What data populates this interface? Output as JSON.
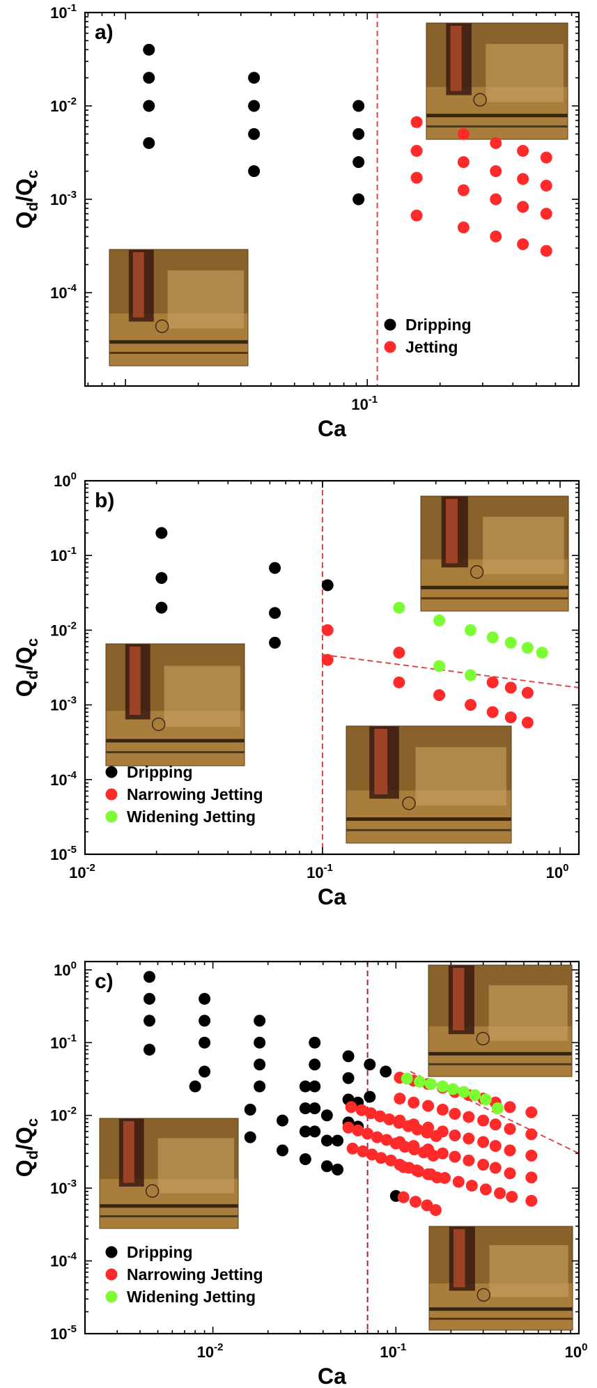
{
  "colors": {
    "dripping": "#000000",
    "narrowing_jetting": "#ff2a2a",
    "widening_jetting": "#7cfc32",
    "divider": "#e0454f",
    "divider_dark": "#b02030",
    "photo_bg": "#a97d3c"
  },
  "chart_data": [
    {
      "type": "scatter",
      "panel_label": "a)",
      "xlabel": "Ca",
      "ylabel_main": "Q",
      "ylabel_sub1": "d",
      "ylabel_div": "/Q",
      "ylabel_sub2": "c",
      "x_scale": "log",
      "y_scale": "log",
      "xlim": [
        0.0068,
        0.75
      ],
      "ylim": [
        1e-05,
        0.1
      ],
      "x_ticks": [
        {
          "value": 0.1,
          "base": "10",
          "exp": "-1"
        }
      ],
      "y_ticks": [
        {
          "value": 0.1,
          "base": "10",
          "exp": "-1"
        },
        {
          "value": 0.01,
          "base": "10",
          "exp": "-2"
        },
        {
          "value": 0.001,
          "base": "10",
          "exp": "-3"
        },
        {
          "value": 0.0001,
          "base": "10",
          "exp": "-4"
        }
      ],
      "legend_position": "bottom-right",
      "series": [
        {
          "name": "Dripping",
          "color_key": "dripping",
          "points": [
            [
              0.0125,
              0.04
            ],
            [
              0.0125,
              0.02
            ],
            [
              0.0125,
              0.01
            ],
            [
              0.0125,
              0.004
            ],
            [
              0.034,
              0.02
            ],
            [
              0.034,
              0.01
            ],
            [
              0.034,
              0.005
            ],
            [
              0.034,
              0.002
            ],
            [
              0.092,
              0.01
            ],
            [
              0.092,
              0.005
            ],
            [
              0.092,
              0.0025
            ],
            [
              0.092,
              0.001
            ]
          ]
        },
        {
          "name": "Jetting",
          "color_key": "narrowing_jetting",
          "points": [
            [
              0.16,
              0.0067
            ],
            [
              0.16,
              0.0033
            ],
            [
              0.16,
              0.0017
            ],
            [
              0.16,
              0.00067
            ],
            [
              0.25,
              0.005
            ],
            [
              0.25,
              0.0025
            ],
            [
              0.25,
              0.00125
            ],
            [
              0.25,
              0.0005
            ],
            [
              0.34,
              0.004
            ],
            [
              0.34,
              0.002
            ],
            [
              0.34,
              0.001
            ],
            [
              0.34,
              0.0004
            ],
            [
              0.44,
              0.0033
            ],
            [
              0.44,
              0.00165
            ],
            [
              0.44,
              0.00083
            ],
            [
              0.44,
              0.00033
            ],
            [
              0.55,
              0.0028
            ],
            [
              0.55,
              0.0014
            ],
            [
              0.55,
              0.0007
            ],
            [
              0.55,
              0.00028
            ]
          ]
        }
      ],
      "lines": [
        {
          "style": "vertical",
          "x": 0.11,
          "color_key": "divider"
        }
      ],
      "insets": [
        "photo-upper-right",
        "photo-lower-left"
      ]
    },
    {
      "type": "scatter",
      "panel_label": "b)",
      "xlabel": "Ca",
      "ylabel_main": "Q",
      "ylabel_sub1": "d",
      "ylabel_div": "/Q",
      "ylabel_sub2": "c",
      "x_scale": "log",
      "y_scale": "log",
      "xlim": [
        0.01,
        1.2
      ],
      "ylim": [
        1e-05,
        1
      ],
      "x_ticks": [
        {
          "value": 0.01,
          "base": "10",
          "exp": "-2"
        },
        {
          "value": 0.1,
          "base": "10",
          "exp": "-1"
        },
        {
          "value": 1,
          "base": "10",
          "exp": "0"
        }
      ],
      "y_ticks": [
        {
          "value": 1,
          "base": "10",
          "exp": "0"
        },
        {
          "value": 0.1,
          "base": "10",
          "exp": "-1"
        },
        {
          "value": 0.01,
          "base": "10",
          "exp": "-2"
        },
        {
          "value": 0.001,
          "base": "10",
          "exp": "-3"
        },
        {
          "value": 0.0001,
          "base": "10",
          "exp": "-4"
        },
        {
          "value": 1e-05,
          "base": "10",
          "exp": "-5"
        }
      ],
      "legend_position": "bottom-left",
      "series": [
        {
          "name": "Dripping",
          "color_key": "dripping",
          "points": [
            [
              0.021,
              0.2
            ],
            [
              0.021,
              0.05
            ],
            [
              0.021,
              0.02
            ],
            [
              0.063,
              0.068
            ],
            [
              0.063,
              0.017
            ],
            [
              0.063,
              0.0068
            ],
            [
              0.105,
              0.04
            ]
          ]
        },
        {
          "name": "Narrowing Jetting",
          "color_key": "narrowing_jetting",
          "points": [
            [
              0.105,
              0.01
            ],
            [
              0.105,
              0.004
            ],
            [
              0.21,
              0.005
            ],
            [
              0.21,
              0.002
            ],
            [
              0.31,
              0.00135
            ],
            [
              0.42,
              0.001
            ],
            [
              0.52,
              0.002
            ],
            [
              0.52,
              0.0008
            ],
            [
              0.62,
              0.0017
            ],
            [
              0.62,
              0.00068
            ],
            [
              0.73,
              0.00145
            ],
            [
              0.73,
              0.00058
            ]
          ]
        },
        {
          "name": "Widening Jetting",
          "color_key": "widening_jetting",
          "points": [
            [
              0.21,
              0.02
            ],
            [
              0.31,
              0.0135
            ],
            [
              0.31,
              0.0033
            ],
            [
              0.42,
              0.01
            ],
            [
              0.42,
              0.0025
            ],
            [
              0.52,
              0.008
            ],
            [
              0.62,
              0.0068
            ],
            [
              0.73,
              0.0058
            ],
            [
              0.84,
              0.005
            ]
          ]
        }
      ],
      "lines": [
        {
          "style": "vertical",
          "x": 0.1,
          "color_key": "divider"
        },
        {
          "style": "segment",
          "x1": 0.1,
          "y1": 0.0047,
          "x2": 1.2,
          "y2": 0.0017,
          "color_key": "divider"
        }
      ],
      "insets": [
        "photo-upper-right",
        "photo-middle-left",
        "photo-lower-middle"
      ]
    },
    {
      "type": "scatter",
      "panel_label": "c)",
      "xlabel": "Ca",
      "ylabel_main": "Q",
      "ylabel_sub1": "d",
      "ylabel_div": "/Q",
      "ylabel_sub2": "c",
      "x_scale": "log",
      "y_scale": "log",
      "xlim": [
        0.002,
        1
      ],
      "ylim": [
        1e-05,
        1.3
      ],
      "x_ticks": [
        {
          "value": 0.01,
          "base": "10",
          "exp": "-2"
        },
        {
          "value": 0.1,
          "base": "10",
          "exp": "-1"
        },
        {
          "value": 1,
          "base": "10",
          "exp": "0"
        }
      ],
      "y_ticks": [
        {
          "value": 1,
          "base": "10",
          "exp": "0"
        },
        {
          "value": 0.1,
          "base": "10",
          "exp": "-1"
        },
        {
          "value": 0.01,
          "base": "10",
          "exp": "-2"
        },
        {
          "value": 0.001,
          "base": "10",
          "exp": "-3"
        },
        {
          "value": 0.0001,
          "base": "10",
          "exp": "-4"
        },
        {
          "value": 1e-05,
          "base": "10",
          "exp": "-5"
        }
      ],
      "legend_position": "bottom-left",
      "series": [
        {
          "name": "Dripping",
          "color_key": "dripping",
          "points": [
            [
              0.0045,
              0.8
            ],
            [
              0.0045,
              0.4
            ],
            [
              0.0045,
              0.2
            ],
            [
              0.0045,
              0.08
            ],
            [
              0.008,
              0.025
            ],
            [
              0.009,
              0.4
            ],
            [
              0.009,
              0.2
            ],
            [
              0.009,
              0.1
            ],
            [
              0.009,
              0.04
            ],
            [
              0.016,
              0.005
            ],
            [
              0.016,
              0.012
            ],
            [
              0.018,
              0.2
            ],
            [
              0.018,
              0.1
            ],
            [
              0.018,
              0.05
            ],
            [
              0.018,
              0.025
            ],
            [
              0.024,
              0.0033
            ],
            [
              0.024,
              0.0085
            ],
            [
              0.032,
              0.025
            ],
            [
              0.032,
              0.0125
            ],
            [
              0.032,
              0.006
            ],
            [
              0.032,
              0.0025
            ],
            [
              0.036,
              0.1
            ],
            [
              0.036,
              0.05
            ],
            [
              0.036,
              0.025
            ],
            [
              0.036,
              0.0125
            ],
            [
              0.036,
              0.006
            ],
            [
              0.042,
              0.002
            ],
            [
              0.042,
              0.0045
            ],
            [
              0.042,
              0.01
            ],
            [
              0.048,
              0.0018
            ],
            [
              0.048,
              0.0045
            ],
            [
              0.055,
              0.065
            ],
            [
              0.055,
              0.0325
            ],
            [
              0.055,
              0.0165
            ],
            [
              0.055,
              0.008
            ],
            [
              0.062,
              0.007
            ],
            [
              0.062,
              0.015
            ],
            [
              0.072,
              0.05
            ],
            [
              0.072,
              0.018
            ],
            [
              0.088,
              0.04
            ],
            [
              0.1,
              0.00078
            ]
          ]
        },
        {
          "name": "Narrowing Jetting",
          "color_key": "narrowing_jetting",
          "points": [
            [
              0.057,
              0.013
            ],
            [
              0.065,
              0.0118
            ],
            [
              0.073,
              0.0107
            ],
            [
              0.082,
              0.0097
            ],
            [
              0.092,
              0.0088
            ],
            [
              0.104,
              0.0079
            ],
            [
              0.117,
              0.0071
            ],
            [
              0.131,
              0.0064
            ],
            [
              0.148,
              0.0058
            ],
            [
              0.166,
              0.0052
            ],
            [
              0.055,
              0.0068
            ],
            [
              0.062,
              0.0062
            ],
            [
              0.07,
              0.0056
            ],
            [
              0.079,
              0.005
            ],
            [
              0.089,
              0.0046
            ],
            [
              0.1,
              0.0041
            ],
            [
              0.112,
              0.0037
            ],
            [
              0.126,
              0.0034
            ],
            [
              0.142,
              0.0031
            ],
            [
              0.16,
              0.0028
            ],
            [
              0.058,
              0.0035
            ],
            [
              0.066,
              0.0032
            ],
            [
              0.074,
              0.0029
            ],
            [
              0.083,
              0.0026
            ],
            [
              0.094,
              0.0024
            ],
            [
              0.105,
              0.0021
            ],
            [
              0.118,
              0.0019
            ],
            [
              0.133,
              0.0017
            ],
            [
              0.15,
              0.00155
            ],
            [
              0.168,
              0.0014
            ],
            [
              0.11,
              0.00075
            ],
            [
              0.128,
              0.00065
            ],
            [
              0.148,
              0.00058
            ],
            [
              0.165,
              0.0005
            ],
            [
              0.105,
              0.033
            ],
            [
              0.125,
              0.03
            ],
            [
              0.15,
              0.027
            ],
            [
              0.18,
              0.024
            ],
            [
              0.21,
              0.021
            ],
            [
              0.25,
              0.019
            ],
            [
              0.3,
              0.017
            ],
            [
              0.35,
              0.015
            ],
            [
              0.42,
              0.013
            ],
            [
              0.55,
              0.011
            ],
            [
              0.105,
              0.017
            ],
            [
              0.125,
              0.015
            ],
            [
              0.15,
              0.0135
            ],
            [
              0.18,
              0.012
            ],
            [
              0.21,
              0.0105
            ],
            [
              0.25,
              0.0095
            ],
            [
              0.3,
              0.0085
            ],
            [
              0.35,
              0.0075
            ],
            [
              0.42,
              0.0065
            ],
            [
              0.55,
              0.0055
            ],
            [
              0.105,
              0.0085
            ],
            [
              0.125,
              0.0075
            ],
            [
              0.15,
              0.0068
            ],
            [
              0.18,
              0.006
            ],
            [
              0.21,
              0.0053
            ],
            [
              0.25,
              0.0048
            ],
            [
              0.3,
              0.0043
            ],
            [
              0.35,
              0.0038
            ],
            [
              0.42,
              0.0033
            ],
            [
              0.55,
              0.0028
            ],
            [
              0.105,
              0.0043
            ],
            [
              0.125,
              0.0038
            ],
            [
              0.15,
              0.0034
            ],
            [
              0.18,
              0.003
            ],
            [
              0.21,
              0.0027
            ],
            [
              0.25,
              0.0024
            ],
            [
              0.3,
              0.0021
            ],
            [
              0.35,
              0.0019
            ],
            [
              0.42,
              0.0016
            ],
            [
              0.55,
              0.0014
            ],
            [
              0.11,
              0.00195
            ],
            [
              0.13,
              0.00175
            ],
            [
              0.155,
              0.00155
            ],
            [
              0.185,
              0.00138
            ],
            [
              0.22,
              0.00122
            ],
            [
              0.26,
              0.00108
            ],
            [
              0.31,
              0.00096
            ],
            [
              0.37,
              0.00085
            ],
            [
              0.43,
              0.00076
            ],
            [
              0.55,
              0.00067
            ]
          ]
        },
        {
          "name": "Widening Jetting",
          "color_key": "widening_jetting",
          "points": [
            [
              0.115,
              0.032
            ],
            [
              0.135,
              0.029
            ],
            [
              0.155,
              0.027
            ],
            [
              0.18,
              0.025
            ],
            [
              0.205,
              0.023
            ],
            [
              0.235,
              0.021
            ],
            [
              0.27,
              0.019
            ],
            [
              0.31,
              0.0165
            ],
            [
              0.36,
              0.0125
            ]
          ]
        }
      ],
      "lines": [
        {
          "style": "vertical",
          "x": 0.07,
          "color_key": "divider_dark"
        },
        {
          "style": "segment",
          "x1": 0.12,
          "y1": 0.04,
          "x2": 1,
          "y2": 0.003,
          "color_key": "divider"
        }
      ],
      "insets": [
        "photo-upper-right",
        "photo-middle-left",
        "photo-lower-right"
      ]
    }
  ]
}
